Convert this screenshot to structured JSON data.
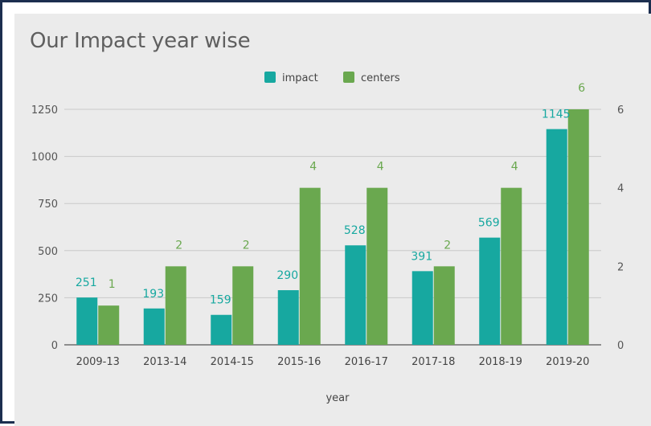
{
  "chart_data": {
    "type": "bar",
    "title": "Our Impact year wise",
    "xlabel": "year",
    "categories": [
      "2009-13",
      "2013-14",
      "2014-15",
      "2015-16",
      "2016-17",
      "2017-18",
      "2018-19",
      "2019-20"
    ],
    "series": [
      {
        "name": "impact",
        "axis": "left",
        "color": "#17a8a0",
        "values": [
          251,
          193,
          159,
          290,
          528,
          391,
          569,
          1145
        ]
      },
      {
        "name": "centers",
        "axis": "right",
        "color": "#6aa84f",
        "values": [
          1,
          2,
          2,
          4,
          4,
          2,
          4,
          6
        ]
      }
    ],
    "left_axis": {
      "ticks": [
        "0",
        "250",
        "500",
        "750",
        "1000",
        "1250"
      ],
      "ylim": [
        0,
        1250
      ]
    },
    "right_axis": {
      "ticks": [
        "0",
        "2",
        "4",
        "6"
      ],
      "ylim": [
        0,
        6
      ]
    },
    "legend_position": "top-center",
    "grid": true
  }
}
